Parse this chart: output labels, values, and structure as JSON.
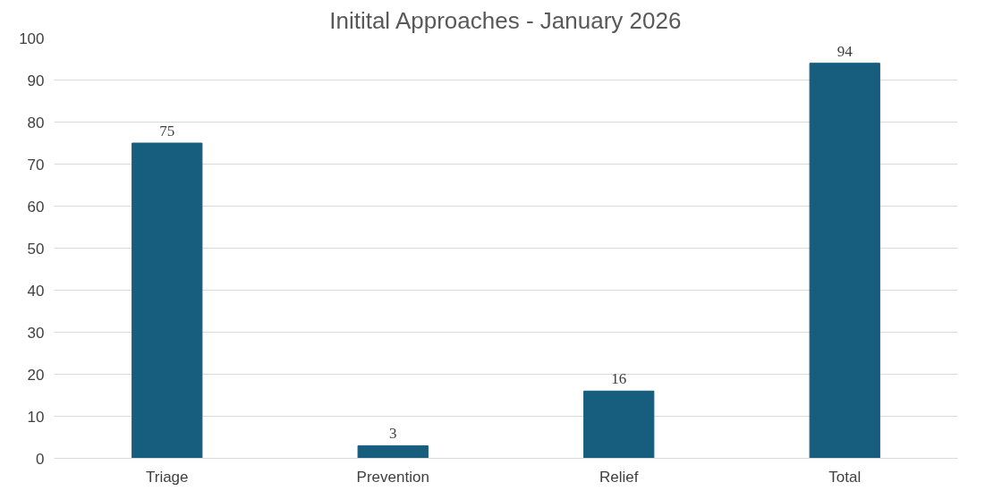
{
  "chart_data": {
    "type": "bar",
    "title": "Initital Approaches - January 2026",
    "categories": [
      "Triage",
      "Prevention",
      "Relief",
      "Total"
    ],
    "values": [
      75,
      3,
      16,
      94
    ],
    "color": "#175e7e",
    "ylim": [
      0,
      100
    ],
    "yticks": [
      0,
      10,
      20,
      30,
      40,
      50,
      60,
      70,
      80,
      90,
      100
    ],
    "grid": "y",
    "data_labels": true
  }
}
